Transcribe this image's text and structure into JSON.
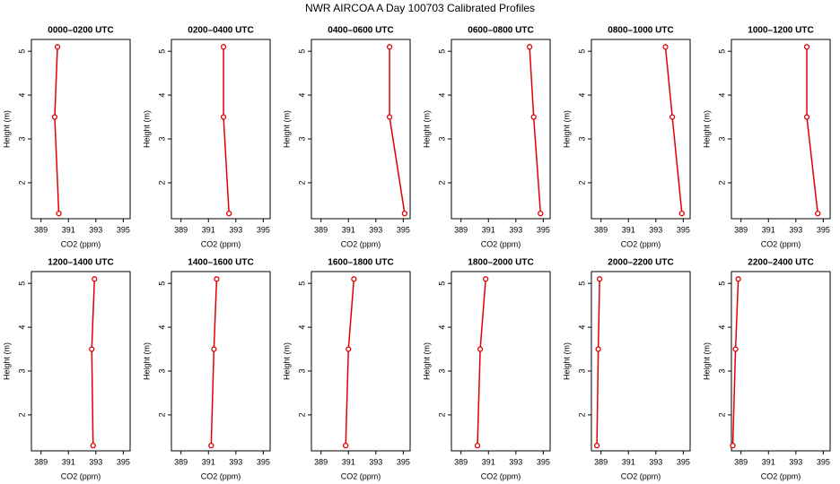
{
  "title": "NWR AIRCOA A  Day 100703  Calibrated Profiles",
  "chart_data": [
    {
      "type": "line",
      "title": "0000–0200 UTC",
      "xlabel": "CO2 (ppm)",
      "ylabel": "Height (m)",
      "x": [
        390.2,
        390.0,
        390.3
      ],
      "values": [
        5.1,
        3.5,
        1.3
      ],
      "color": "#e00000",
      "xlim": [
        388.3,
        395.5
      ],
      "ylim": [
        1.18,
        5.27
      ],
      "xticks": [
        389,
        391,
        393,
        395
      ],
      "yticks": [
        2,
        3,
        4,
        5
      ]
    },
    {
      "type": "line",
      "title": "0200–0400 UTC",
      "xlabel": "CO2 (ppm)",
      "ylabel": "Height (m)",
      "x": [
        392.1,
        392.1,
        392.5
      ],
      "values": [
        5.1,
        3.5,
        1.3
      ],
      "color": "#e00000",
      "xlim": [
        388.3,
        395.5
      ],
      "ylim": [
        1.18,
        5.27
      ],
      "xticks": [
        389,
        391,
        393,
        395
      ],
      "yticks": [
        2,
        3,
        4,
        5
      ]
    },
    {
      "type": "line",
      "title": "0400–0600 UTC",
      "xlabel": "CO2 (ppm)",
      "ylabel": "Height (m)",
      "x": [
        394.0,
        394.0,
        395.1
      ],
      "values": [
        5.1,
        3.5,
        1.3
      ],
      "color": "#e00000",
      "xlim": [
        388.3,
        395.5
      ],
      "ylim": [
        1.18,
        5.27
      ],
      "xticks": [
        389,
        391,
        393,
        395
      ],
      "yticks": [
        2,
        3,
        4,
        5
      ]
    },
    {
      "type": "line",
      "title": "0600–0800 UTC",
      "xlabel": "CO2 (ppm)",
      "ylabel": "Height (m)",
      "x": [
        394.0,
        394.3,
        394.8
      ],
      "values": [
        5.1,
        3.5,
        1.3
      ],
      "color": "#e00000",
      "xlim": [
        388.3,
        395.5
      ],
      "ylim": [
        1.18,
        5.27
      ],
      "xticks": [
        389,
        391,
        393,
        395
      ],
      "yticks": [
        2,
        3,
        4,
        5
      ]
    },
    {
      "type": "line",
      "title": "0800–1000 UTC",
      "xlabel": "CO2 (ppm)",
      "ylabel": "Height (m)",
      "x": [
        393.7,
        394.2,
        394.9
      ],
      "values": [
        5.1,
        3.5,
        1.3
      ],
      "color": "#e00000",
      "xlim": [
        388.3,
        395.5
      ],
      "ylim": [
        1.18,
        5.27
      ],
      "xticks": [
        389,
        391,
        393,
        395
      ],
      "yticks": [
        2,
        3,
        4,
        5
      ]
    },
    {
      "type": "line",
      "title": "1000–1200 UTC",
      "xlabel": "CO2 (ppm)",
      "ylabel": "Height (m)",
      "x": [
        393.8,
        393.8,
        394.6
      ],
      "values": [
        5.1,
        3.5,
        1.3
      ],
      "color": "#e00000",
      "xlim": [
        388.3,
        395.5
      ],
      "ylim": [
        1.18,
        5.27
      ],
      "xticks": [
        389,
        391,
        393,
        395
      ],
      "yticks": [
        2,
        3,
        4,
        5
      ]
    },
    {
      "type": "line",
      "title": "1200–1400 UTC",
      "xlabel": "CO2 (ppm)",
      "ylabel": "Height (m)",
      "x": [
        392.9,
        392.7,
        392.8
      ],
      "values": [
        5.1,
        3.5,
        1.3
      ],
      "color": "#e00000",
      "xlim": [
        388.3,
        395.5
      ],
      "ylim": [
        1.18,
        5.27
      ],
      "xticks": [
        389,
        391,
        393,
        395
      ],
      "yticks": [
        2,
        3,
        4,
        5
      ]
    },
    {
      "type": "line",
      "title": "1400–1600 UTC",
      "xlabel": "CO2 (ppm)",
      "ylabel": "Height (m)",
      "x": [
        391.6,
        391.4,
        391.2
      ],
      "values": [
        5.1,
        3.5,
        1.3
      ],
      "color": "#e00000",
      "xlim": [
        388.3,
        395.5
      ],
      "ylim": [
        1.18,
        5.27
      ],
      "xticks": [
        389,
        391,
        393,
        395
      ],
      "yticks": [
        2,
        3,
        4,
        5
      ]
    },
    {
      "type": "line",
      "title": "1600–1800 UTC",
      "xlabel": "CO2 (ppm)",
      "ylabel": "Height (m)",
      "x": [
        391.4,
        391.0,
        390.8
      ],
      "values": [
        5.1,
        3.5,
        1.3
      ],
      "color": "#e00000",
      "xlim": [
        388.3,
        395.5
      ],
      "ylim": [
        1.18,
        5.27
      ],
      "xticks": [
        389,
        391,
        393,
        395
      ],
      "yticks": [
        2,
        3,
        4,
        5
      ]
    },
    {
      "type": "line",
      "title": "1800–2000 UTC",
      "xlabel": "CO2 (ppm)",
      "ylabel": "Height (m)",
      "x": [
        390.8,
        390.4,
        390.2
      ],
      "values": [
        5.1,
        3.5,
        1.3
      ],
      "color": "#e00000",
      "xlim": [
        388.3,
        395.5
      ],
      "ylim": [
        1.18,
        5.27
      ],
      "xticks": [
        389,
        391,
        393,
        395
      ],
      "yticks": [
        2,
        3,
        4,
        5
      ]
    },
    {
      "type": "line",
      "title": "2000–2200 UTC",
      "xlabel": "CO2 (ppm)",
      "ylabel": "Height (m)",
      "x": [
        388.9,
        388.8,
        388.7
      ],
      "values": [
        5.1,
        3.5,
        1.3
      ],
      "color": "#e00000",
      "xlim": [
        388.3,
        395.5
      ],
      "ylim": [
        1.18,
        5.27
      ],
      "xticks": [
        389,
        391,
        393,
        395
      ],
      "yticks": [
        2,
        3,
        4,
        5
      ]
    },
    {
      "type": "line",
      "title": "2200–2400 UTC",
      "xlabel": "CO2 (ppm)",
      "ylabel": "Height (m)",
      "x": [
        388.8,
        388.6,
        388.4
      ],
      "values": [
        5.1,
        3.5,
        1.3
      ],
      "color": "#e00000",
      "xlim": [
        388.3,
        395.5
      ],
      "ylim": [
        1.18,
        5.27
      ],
      "xticks": [
        389,
        391,
        393,
        395
      ],
      "yticks": [
        2,
        3,
        4,
        5
      ]
    }
  ]
}
